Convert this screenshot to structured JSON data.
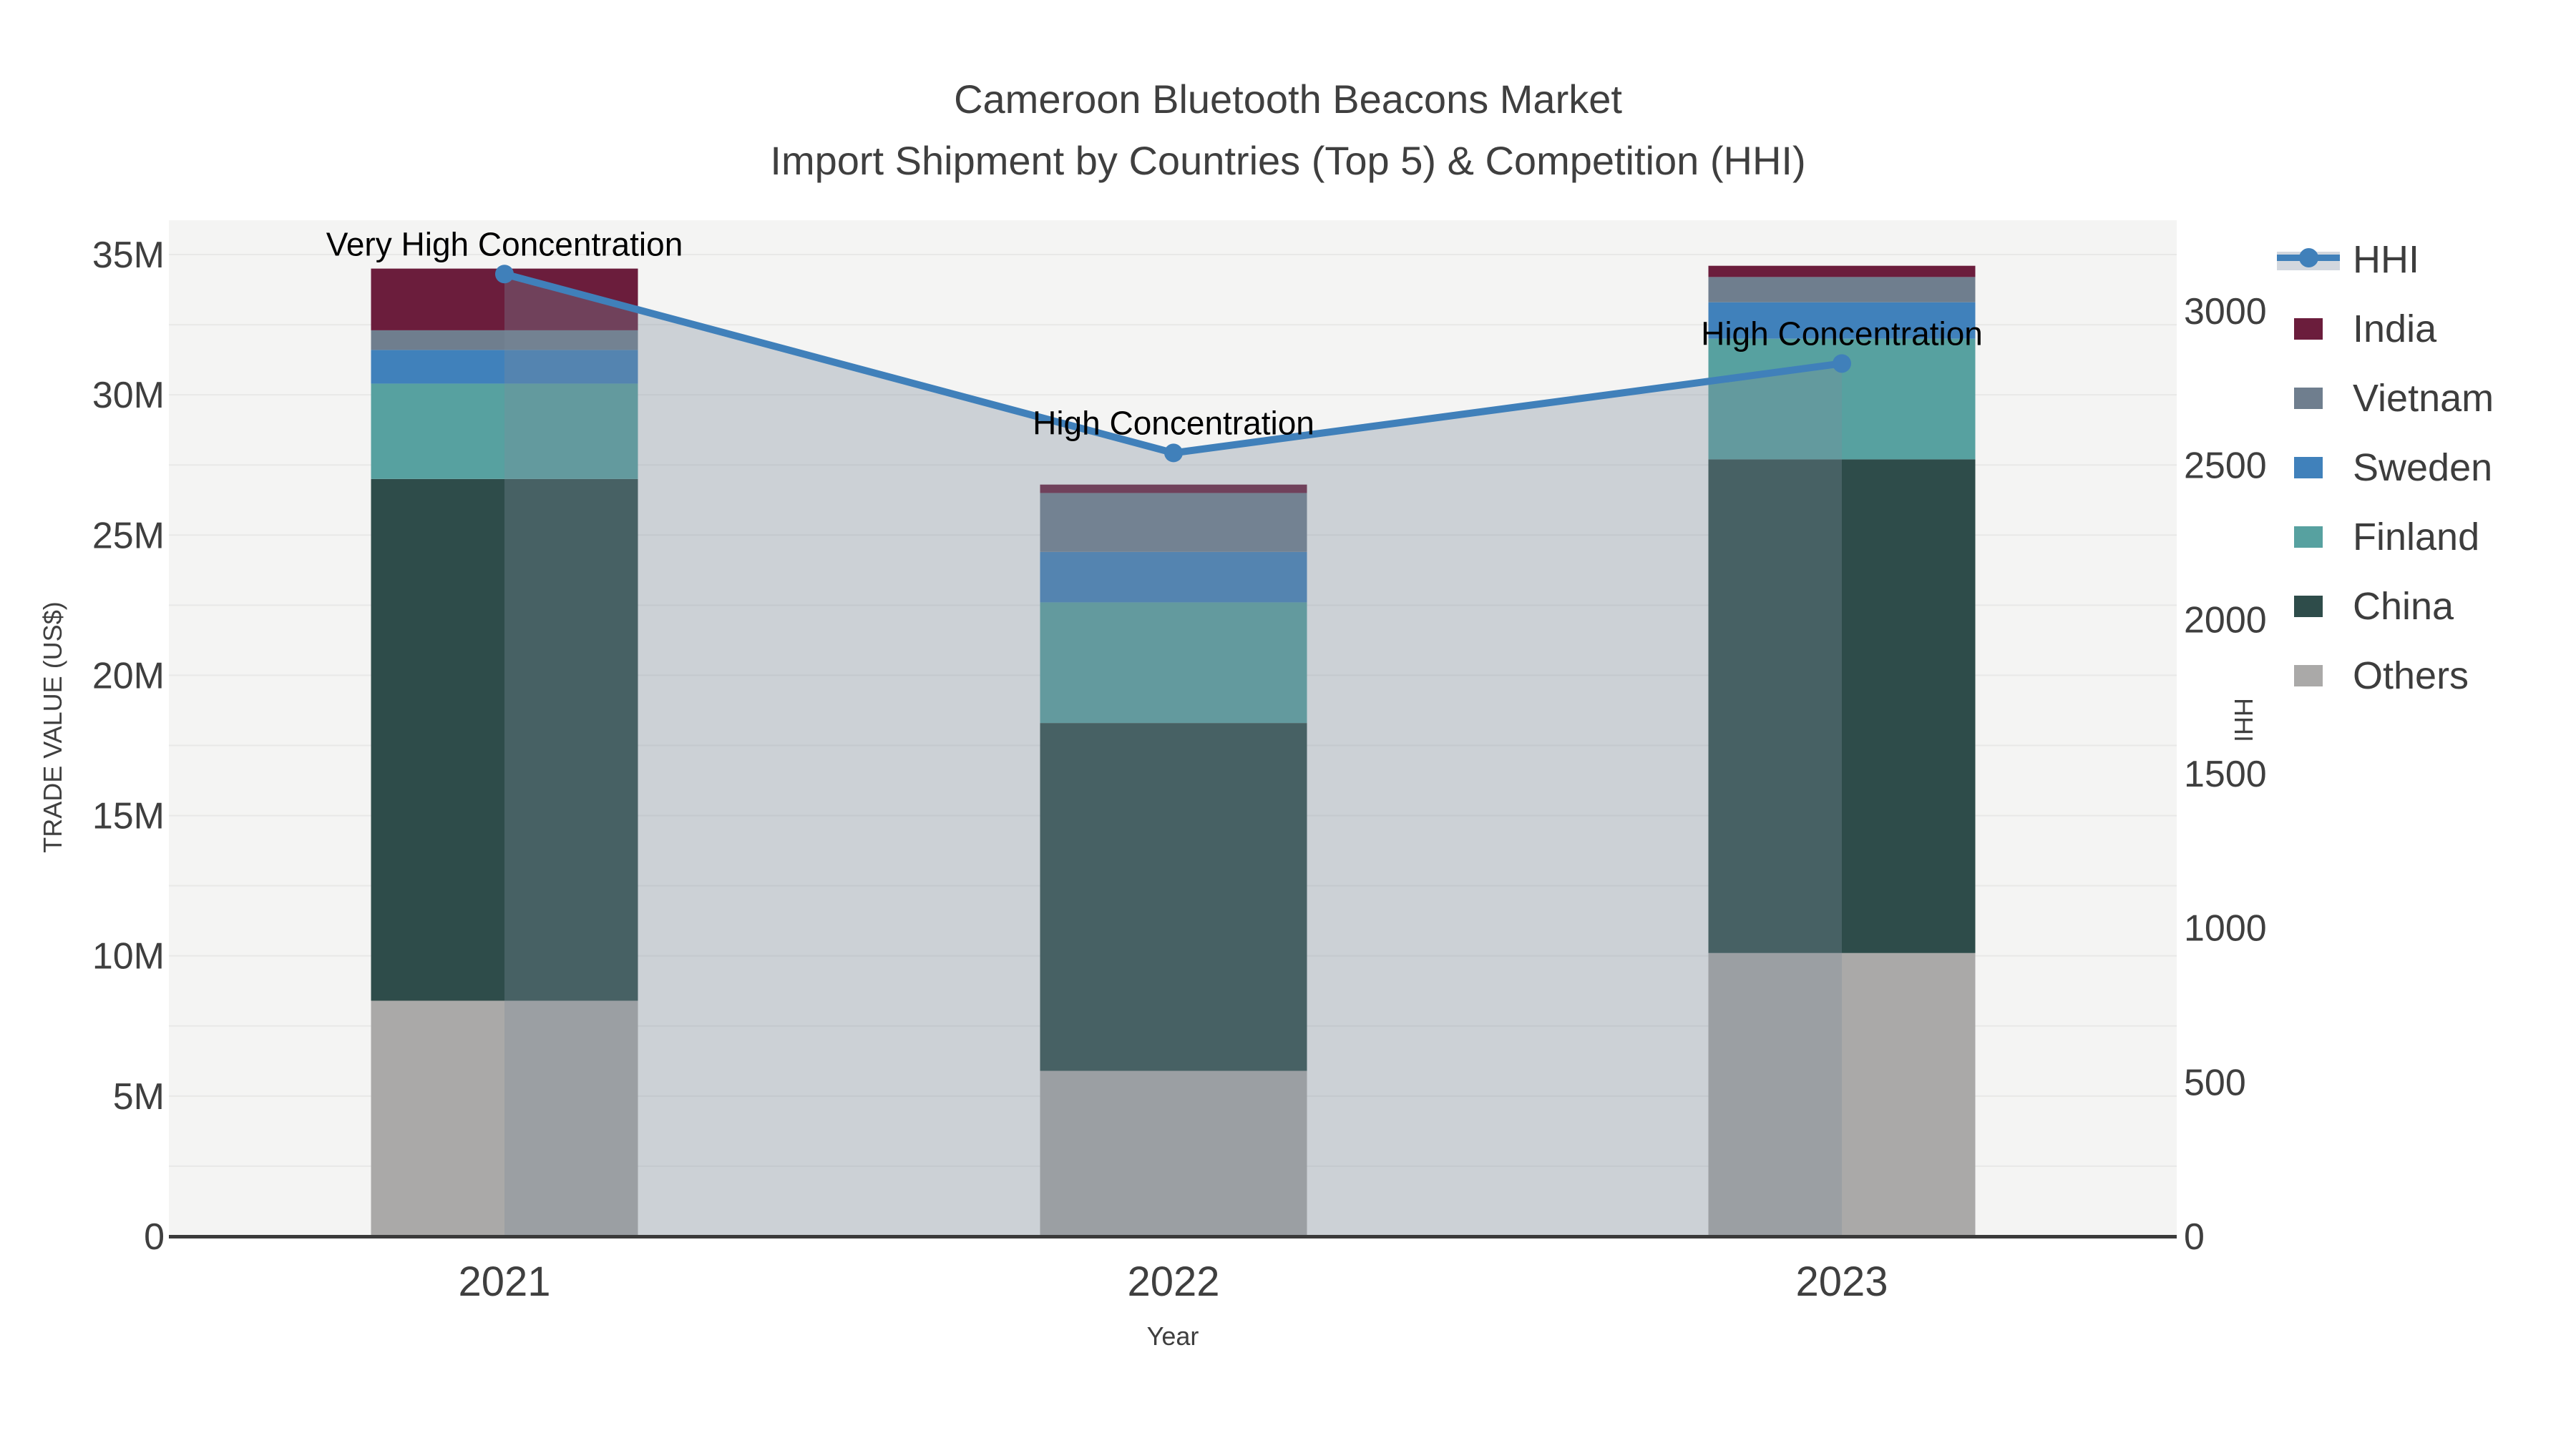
{
  "figure": {
    "title": "Cameroon Bluetooth Beacons Market",
    "subtitle": "Import Shipment by Countries (Top 5) & Competition (HHI)"
  },
  "axes": {
    "y_left": {
      "title": "TRADE VALUE (US$)",
      "ticks": [
        "0",
        "5M",
        "10M",
        "15M",
        "20M",
        "25M",
        "30M",
        "35M"
      ],
      "tick_values_millions": [
        0,
        5,
        10,
        15,
        20,
        25,
        30,
        35
      ]
    },
    "y_right": {
      "title": "HHI",
      "ticks": [
        "0",
        "500",
        "1000",
        "1500",
        "2000",
        "2500",
        "3000"
      ],
      "tick_values": [
        0,
        500,
        1000,
        1500,
        2000,
        2500,
        3000
      ]
    },
    "x": {
      "title": "Year",
      "categories": [
        "2021",
        "2022",
        "2023"
      ]
    }
  },
  "legend": {
    "items": [
      {
        "label": "HHI",
        "type": "line-band",
        "color": "#4080ba"
      },
      {
        "label": "India",
        "type": "swatch",
        "color": "#6b1d3c"
      },
      {
        "label": "Vietnam",
        "type": "swatch",
        "color": "#6f7e8e"
      },
      {
        "label": "Sweden",
        "type": "swatch",
        "color": "#4081bb"
      },
      {
        "label": "Finland",
        "type": "swatch",
        "color": "#57a1a0"
      },
      {
        "label": "China",
        "type": "swatch",
        "color": "#2e4c4a"
      },
      {
        "label": "Others",
        "type": "swatch",
        "color": "#aaa9a8"
      }
    ]
  },
  "chart_data": {
    "type": "combo: stacked bar (left axis) + line with area fill (right axis)",
    "title": "Cameroon Bluetooth Beacons Market",
    "subtitle": "Import Shipment by Countries (Top 5) & Competition (HHI)",
    "categories": [
      "2021",
      "2022",
      "2023"
    ],
    "xlabel": "Year",
    "ylabel_left": "TRADE VALUE (US$)",
    "ylabel_right": "HHI",
    "ylim_left_millions": [
      0,
      36.2
    ],
    "ylim_right": [
      0,
      3300
    ],
    "grid": "horizontal, every 2.5M, light",
    "legend_position": "right, outside plot",
    "bar_stack_order_bottom_to_top": [
      "Others",
      "China",
      "Finland",
      "Sweden",
      "Vietnam",
      "India"
    ],
    "series": [
      {
        "name": "Others",
        "type": "bar",
        "color": "#aaa9a8",
        "values_millions": [
          8.4,
          5.9,
          10.1
        ]
      },
      {
        "name": "China",
        "type": "bar",
        "color": "#2e4c4a",
        "values_millions": [
          18.6,
          12.4,
          17.6
        ]
      },
      {
        "name": "Finland",
        "type": "bar",
        "color": "#57a1a0",
        "values_millions": [
          3.4,
          4.3,
          4.3
        ]
      },
      {
        "name": "Sweden",
        "type": "bar",
        "color": "#4081bb",
        "values_millions": [
          1.2,
          1.8,
          1.3
        ]
      },
      {
        "name": "Vietnam",
        "type": "bar",
        "color": "#6f7e8e",
        "values_millions": [
          0.7,
          2.1,
          0.9
        ]
      },
      {
        "name": "India",
        "type": "bar",
        "color": "#6b1d3c",
        "values_millions": [
          2.2,
          0.3,
          0.4
        ]
      }
    ],
    "bar_totals_millions": [
      34.5,
      26.8,
      34.6
    ],
    "line_series": {
      "name": "HHI",
      "axis": "right",
      "color": "#4080ba",
      "area_fill": "rgba(125,140,155,0.33)",
      "values": [
        3120,
        2540,
        2830
      ]
    },
    "annotations": [
      {
        "category": "2021",
        "text": "Very High Concentration"
      },
      {
        "category": "2022",
        "text": "High Concentration"
      },
      {
        "category": "2023",
        "text": "High Concentration"
      }
    ]
  }
}
